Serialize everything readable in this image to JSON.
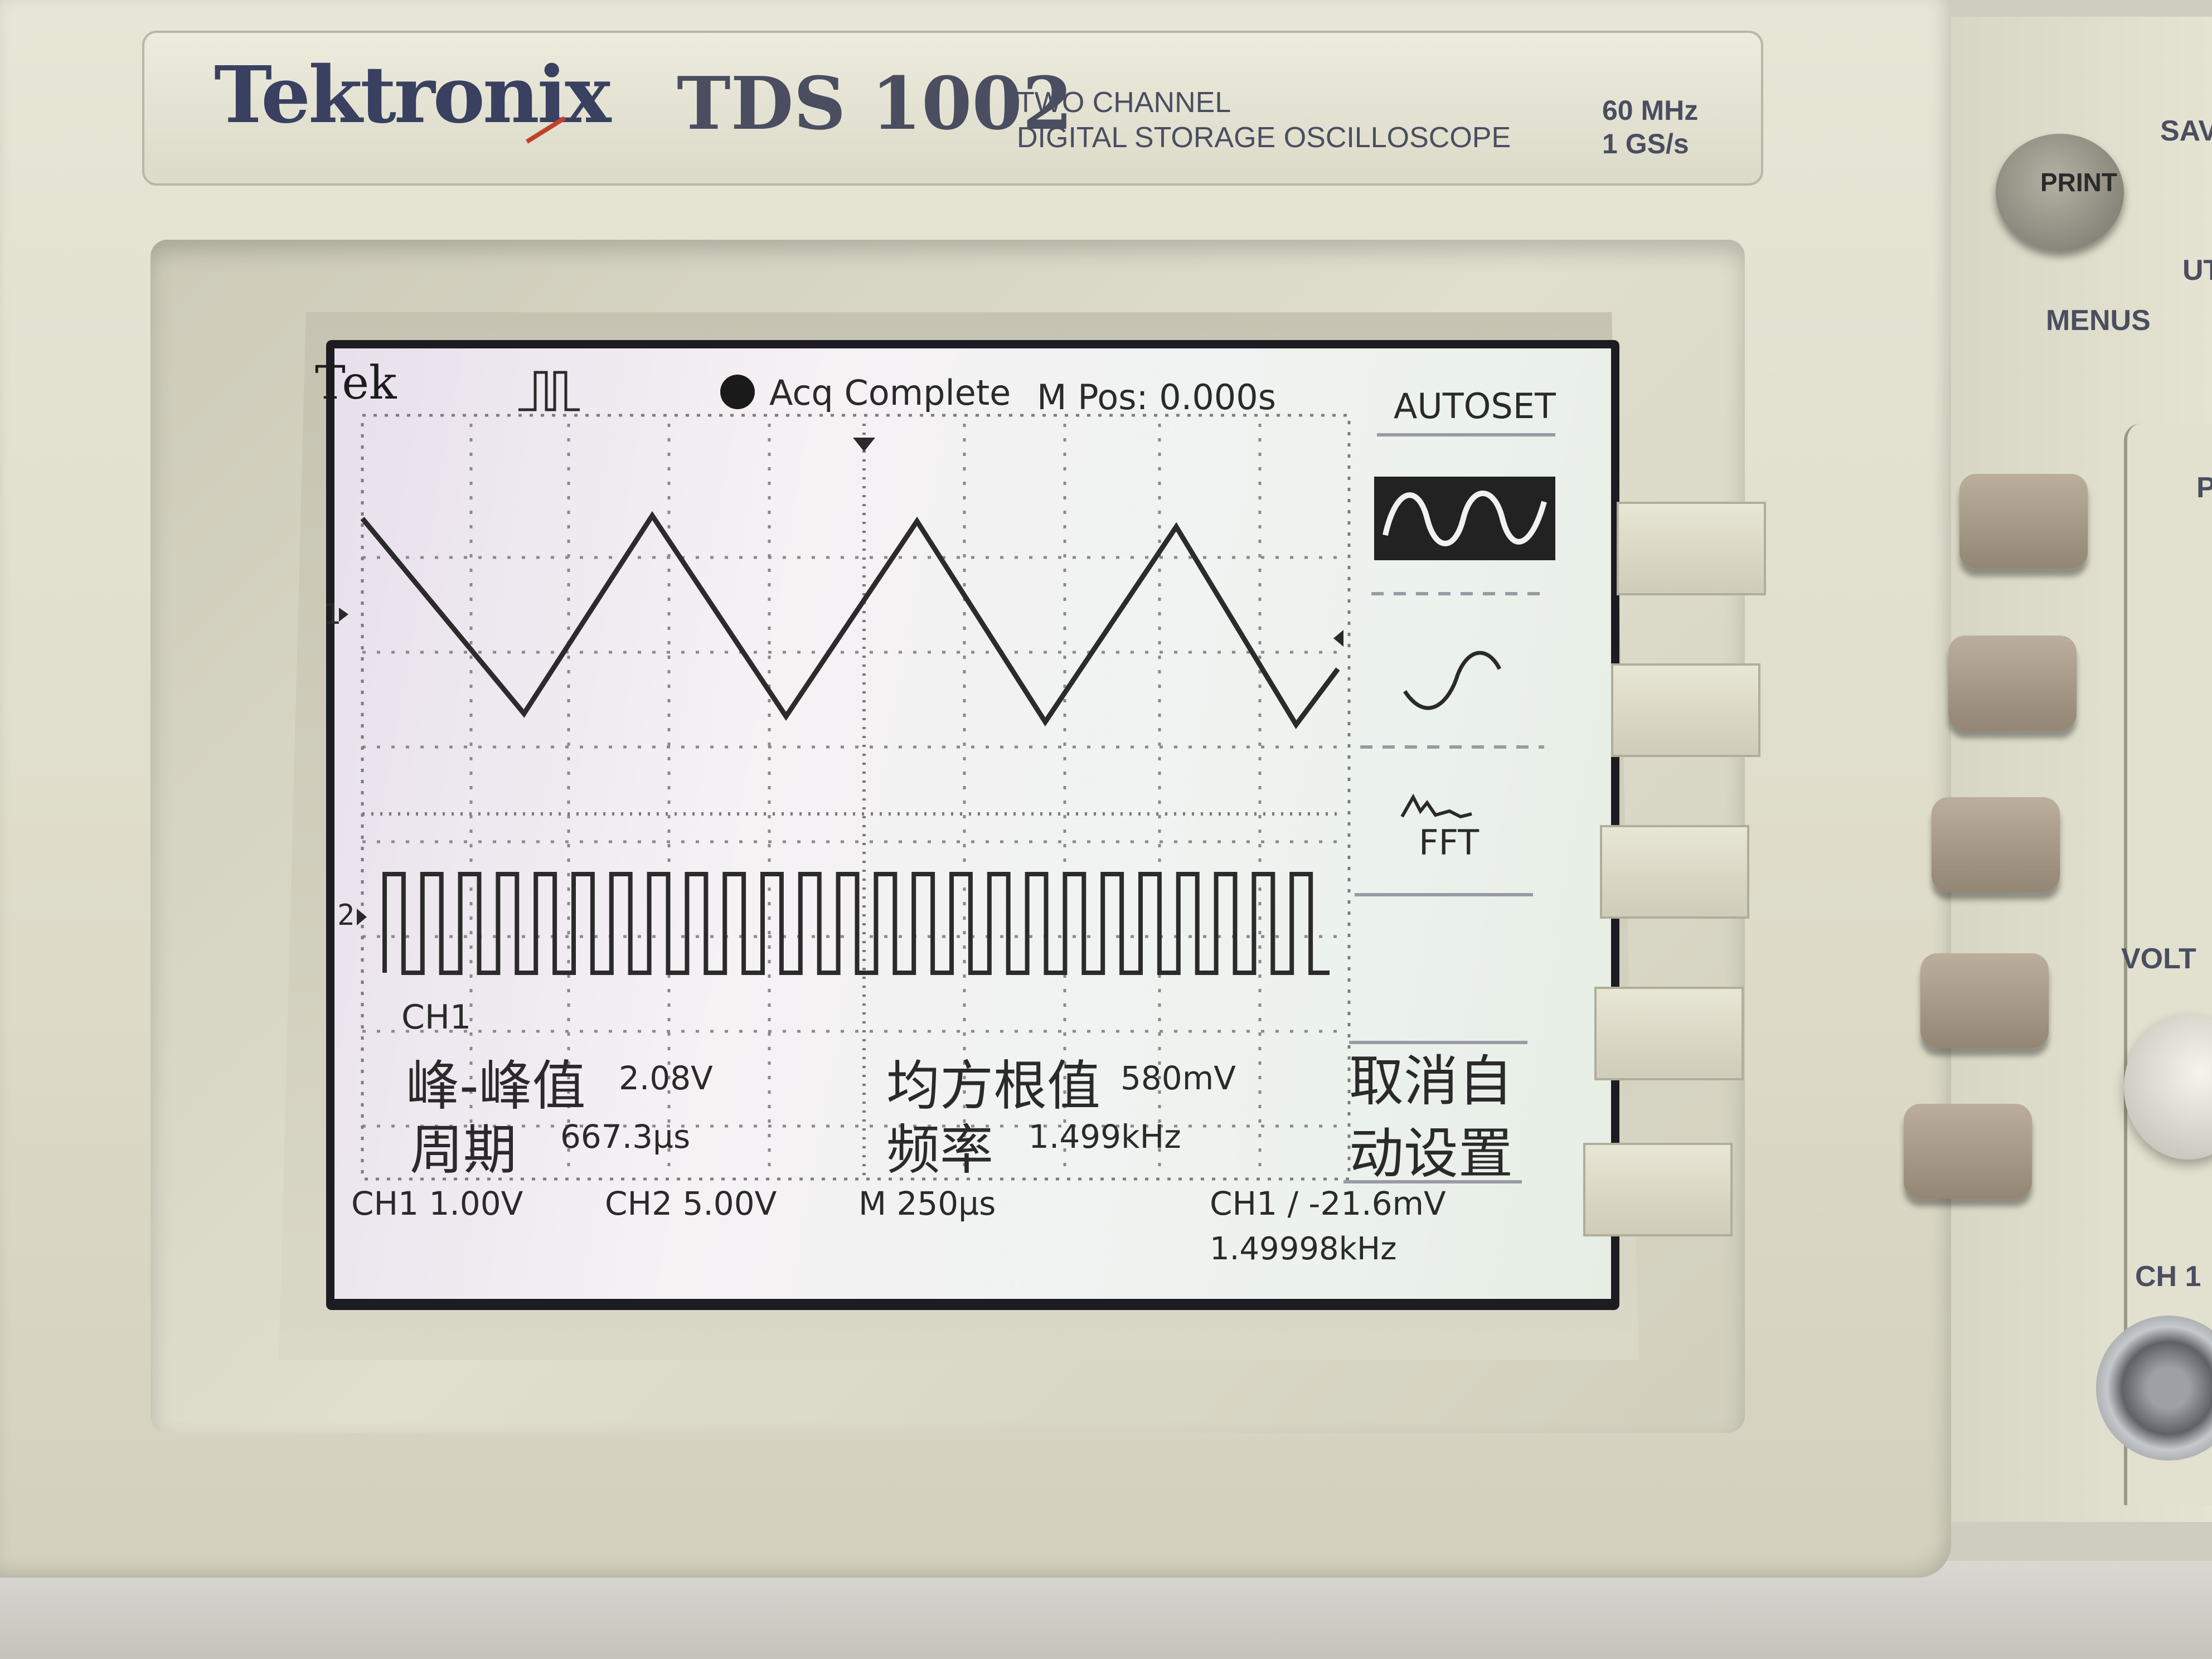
{
  "brand": {
    "logo": "Tektronix",
    "model": "TDS 1002",
    "description_line1": "TWO CHANNEL",
    "description_line2": "DIGITAL STORAGE OSCILLOSCOPE",
    "spec_bandwidth": "60 MHz",
    "spec_sample_rate": "1 GS/s"
  },
  "status_bar": {
    "logo": "Tek",
    "acquisition": "Acq Complete",
    "position": "M Pos: 0.000s"
  },
  "menu": {
    "title": "AUTOSET",
    "option_fft": "FFT",
    "cancel_line1": "取消自",
    "cancel_line2": "动设置"
  },
  "measurements": {
    "source": "CH1",
    "peak_to_peak_label": "峰-峰值",
    "peak_to_peak_value": "2.08V",
    "rms_label": "均方根值",
    "rms_value": "580mV",
    "period_label": "周期",
    "period_value": "667.3µs",
    "frequency_label": "频率",
    "frequency_value": "1.499kHz"
  },
  "bottom_bar": {
    "ch1_scale": "CH1  1.00V",
    "ch2_scale": "CH2  5.00V",
    "timebase": "M 250µs",
    "trigger": "CH1 ∕ -21.6mV",
    "trigger_frequency": "1.49998kHz"
  },
  "markers": {
    "ch1": "1",
    "ch2": "2"
  },
  "panel": {
    "print": "PRINT",
    "menus": "MENUS",
    "save": "SAV",
    "utility": "UT",
    "volts": "VOLT",
    "ch1_input": "CH 1",
    "p": "P"
  },
  "waveforms": {
    "ch1": {
      "shape": "triangle",
      "cycles_visible": 3.7
    },
    "ch2": {
      "shape": "square",
      "cycles_visible": 25
    }
  },
  "colors": {
    "trace": "#2b2b2b",
    "screen": "#f1eef0",
    "case": "#e2e0cf"
  }
}
